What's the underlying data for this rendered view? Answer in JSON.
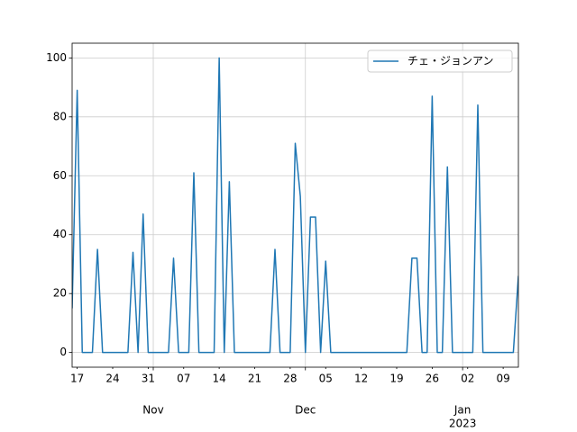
{
  "chart_data": {
    "type": "line",
    "x": [
      "2022-10-16",
      "2022-10-17",
      "2022-10-18",
      "2022-10-19",
      "2022-10-20",
      "2022-10-21",
      "2022-10-22",
      "2022-10-23",
      "2022-10-24",
      "2022-10-25",
      "2022-10-26",
      "2022-10-27",
      "2022-10-28",
      "2022-10-29",
      "2022-10-30",
      "2022-10-31",
      "2022-11-01",
      "2022-11-02",
      "2022-11-03",
      "2022-11-04",
      "2022-11-05",
      "2022-11-06",
      "2022-11-07",
      "2022-11-08",
      "2022-11-09",
      "2022-11-10",
      "2022-11-11",
      "2022-11-12",
      "2022-11-13",
      "2022-11-14",
      "2022-11-15",
      "2022-11-16",
      "2022-11-17",
      "2022-11-18",
      "2022-11-19",
      "2022-11-20",
      "2022-11-21",
      "2022-11-22",
      "2022-11-23",
      "2022-11-24",
      "2022-11-25",
      "2022-11-26",
      "2022-11-27",
      "2022-11-28",
      "2022-11-29",
      "2022-11-30",
      "2022-12-01",
      "2022-12-02",
      "2022-12-03",
      "2022-12-04",
      "2022-12-05",
      "2022-12-06",
      "2022-12-07",
      "2022-12-08",
      "2022-12-09",
      "2022-12-10",
      "2022-12-11",
      "2022-12-12",
      "2022-12-13",
      "2022-12-14",
      "2022-12-15",
      "2022-12-16",
      "2022-12-17",
      "2022-12-18",
      "2022-12-19",
      "2022-12-20",
      "2022-12-21",
      "2022-12-22",
      "2022-12-23",
      "2022-12-24",
      "2022-12-25",
      "2022-12-26",
      "2022-12-27",
      "2022-12-28",
      "2022-12-29",
      "2022-12-30",
      "2022-12-31",
      "2023-01-01",
      "2023-01-02",
      "2023-01-03",
      "2023-01-04",
      "2023-01-05",
      "2023-01-06",
      "2023-01-07",
      "2023-01-08",
      "2023-01-09",
      "2023-01-10",
      "2023-01-11",
      "2023-01-12"
    ],
    "series": [
      {
        "name": "チェ・ジョンアン",
        "color": "#1f77b4",
        "values": [
          15,
          89,
          0,
          0,
          0,
          35,
          0,
          0,
          0,
          0,
          0,
          0,
          34,
          0,
          47,
          0,
          0,
          0,
          0,
          0,
          32,
          0,
          0,
          0,
          61,
          0,
          0,
          0,
          0,
          100,
          0,
          58,
          0,
          0,
          0,
          0,
          0,
          0,
          0,
          0,
          35,
          0,
          0,
          0,
          71,
          53,
          0,
          46,
          46,
          0,
          31,
          0,
          0,
          0,
          0,
          0,
          0,
          0,
          0,
          0,
          0,
          0,
          0,
          0,
          0,
          0,
          0,
          32,
          32,
          0,
          0,
          87,
          0,
          0,
          63,
          0,
          0,
          0,
          0,
          0,
          84,
          0,
          0,
          0,
          0,
          0,
          0,
          0,
          26
        ]
      }
    ],
    "xlim": [
      "2022-10-16",
      "2023-01-12"
    ],
    "xticks": [
      {
        "value": "2022-10-17",
        "label": "17"
      },
      {
        "value": "2022-10-24",
        "label": "24"
      },
      {
        "value": "2022-10-31",
        "label": "31"
      },
      {
        "value": "2022-11-07",
        "label": "07"
      },
      {
        "value": "2022-11-14",
        "label": "14"
      },
      {
        "value": "2022-11-21",
        "label": "21"
      },
      {
        "value": "2022-11-28",
        "label": "28"
      },
      {
        "value": "2022-12-05",
        "label": "05"
      },
      {
        "value": "2022-12-12",
        "label": "12"
      },
      {
        "value": "2022-12-19",
        "label": "19"
      },
      {
        "value": "2022-12-26",
        "label": "26"
      },
      {
        "value": "2023-01-02",
        "label": "02"
      },
      {
        "value": "2023-01-09",
        "label": "09"
      }
    ],
    "month_ticks": [
      {
        "value": "2022-11-01",
        "label": "Nov"
      },
      {
        "value": "2022-12-01",
        "label": "Dec"
      },
      {
        "value": "2023-01-01",
        "label": "Jan",
        "year": "2023"
      }
    ],
    "ylim": [
      -5,
      105
    ],
    "yticks": [
      0,
      20,
      40,
      60,
      80,
      100
    ],
    "grid": true,
    "legend": "upper right"
  }
}
